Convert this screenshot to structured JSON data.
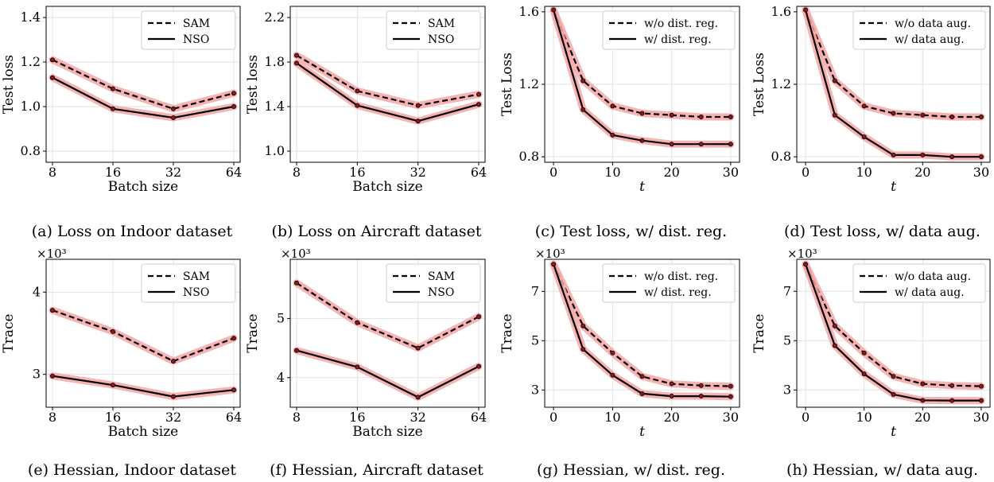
{
  "chart_data": [
    {
      "id": "a",
      "type": "line",
      "caption": "(a) Loss on Indoor dataset",
      "xlabel": "Batch size",
      "ylabel": "Test loss",
      "x_scale": "log2",
      "xticks": [
        8,
        16,
        32,
        64
      ],
      "yticks": [
        "0.8",
        "1.0",
        "1.2",
        "1.4"
      ],
      "xlim": [
        8,
        64
      ],
      "ylim": [
        0.75,
        1.45
      ],
      "exponent_label": "",
      "x": [
        8,
        16,
        32,
        64
      ],
      "series": [
        {
          "name": "SAM",
          "style": "dashed",
          "values": [
            1.21,
            1.08,
            0.99,
            1.06
          ]
        },
        {
          "name": "NSO",
          "style": "solid",
          "values": [
            1.13,
            0.99,
            0.95,
            1.0
          ]
        }
      ]
    },
    {
      "id": "b",
      "type": "line",
      "caption": "(b) Loss on Aircraft dataset",
      "xlabel": "Batch size",
      "ylabel": "Test loss",
      "x_scale": "log2",
      "xticks": [
        8,
        16,
        32,
        64
      ],
      "yticks": [
        "1.0",
        "1.4",
        "1.8",
        "2.2"
      ],
      "xlim": [
        8,
        64
      ],
      "ylim": [
        0.9,
        2.3
      ],
      "exponent_label": "",
      "x": [
        8,
        16,
        32,
        64
      ],
      "series": [
        {
          "name": "SAM",
          "style": "dashed",
          "values": [
            1.86,
            1.54,
            1.41,
            1.51
          ]
        },
        {
          "name": "NSO",
          "style": "solid",
          "values": [
            1.79,
            1.41,
            1.27,
            1.42
          ]
        }
      ]
    },
    {
      "id": "c",
      "type": "line",
      "caption": "(c) Test loss, w/ dist. reg.",
      "xlabel": "t",
      "ylabel": "Test Loss",
      "x_scale": "linear",
      "xticks": [
        0,
        10,
        20,
        30
      ],
      "yticks": [
        "0.8",
        "1.2",
        "1.6"
      ],
      "xlim": [
        -1.5,
        31.5
      ],
      "ylim": [
        0.77,
        1.63
      ],
      "exponent_label": "",
      "x": [
        0,
        5,
        10,
        15,
        20,
        25,
        30
      ],
      "series": [
        {
          "name": "w/o dist. reg.",
          "style": "dashed",
          "values": [
            1.61,
            1.22,
            1.08,
            1.04,
            1.03,
            1.02,
            1.02
          ]
        },
        {
          "name": "w/ dist. reg.",
          "style": "solid",
          "values": [
            1.61,
            1.06,
            0.92,
            0.89,
            0.87,
            0.87,
            0.87
          ]
        }
      ]
    },
    {
      "id": "d",
      "type": "line",
      "caption": "(d) Test loss, w/ data aug.",
      "xlabel": "t",
      "ylabel": "Test Loss",
      "x_scale": "linear",
      "xticks": [
        0,
        10,
        20,
        30
      ],
      "yticks": [
        "0.8",
        "1.2",
        "1.6"
      ],
      "xlim": [
        -1.5,
        31.5
      ],
      "ylim": [
        0.77,
        1.63
      ],
      "exponent_label": "",
      "x": [
        0,
        5,
        10,
        15,
        20,
        25,
        30
      ],
      "series": [
        {
          "name": "w/o data aug.",
          "style": "dashed",
          "values": [
            1.61,
            1.22,
            1.08,
            1.04,
            1.03,
            1.02,
            1.02
          ]
        },
        {
          "name": "w/ data aug.",
          "style": "solid",
          "values": [
            1.61,
            1.03,
            0.91,
            0.81,
            0.81,
            0.8,
            0.8
          ]
        }
      ]
    },
    {
      "id": "e",
      "type": "line",
      "caption": "(e) Hessian, Indoor dataset",
      "xlabel": "Batch size",
      "ylabel": "Trace",
      "x_scale": "log2",
      "xticks": [
        8,
        16,
        32,
        64
      ],
      "yticks": [
        "3",
        "4"
      ],
      "xlim": [
        8,
        64
      ],
      "ylim": [
        2.6,
        4.4
      ],
      "exponent_label": "×10³",
      "x": [
        8,
        16,
        32,
        64
      ],
      "series": [
        {
          "name": "SAM",
          "style": "dashed",
          "values": [
            3.78,
            3.52,
            3.16,
            3.44
          ]
        },
        {
          "name": "NSO",
          "style": "solid",
          "values": [
            2.98,
            2.87,
            2.73,
            2.81
          ]
        }
      ]
    },
    {
      "id": "f",
      "type": "line",
      "caption": "(f) Hessian, Aircraft dataset",
      "xlabel": "Batch size",
      "ylabel": "Trace",
      "x_scale": "log2",
      "xticks": [
        8,
        16,
        32,
        64
      ],
      "yticks": [
        "4",
        "5"
      ],
      "xlim": [
        8,
        64
      ],
      "ylim": [
        3.5,
        6.0
      ],
      "exponent_label": "×10³",
      "x": [
        8,
        16,
        32,
        64
      ],
      "series": [
        {
          "name": "SAM",
          "style": "dashed",
          "values": [
            5.6,
            4.93,
            4.5,
            5.03
          ]
        },
        {
          "name": "NSO",
          "style": "solid",
          "values": [
            4.46,
            4.18,
            3.67,
            4.19
          ]
        }
      ]
    },
    {
      "id": "g",
      "type": "line",
      "caption": "(g) Hessian, w/ dist. reg.",
      "xlabel": "t",
      "ylabel": "Trace",
      "x_scale": "linear",
      "xticks": [
        0,
        10,
        20,
        30
      ],
      "yticks": [
        "3",
        "5",
        "7"
      ],
      "xlim": [
        -1.5,
        31.5
      ],
      "ylim": [
        2.3,
        8.3
      ],
      "exponent_label": "×10³",
      "x": [
        0,
        5,
        10,
        15,
        20,
        25,
        30
      ],
      "series": [
        {
          "name": "w/o dist. reg.",
          "style": "dashed",
          "values": [
            8.1,
            5.6,
            4.5,
            3.55,
            3.25,
            3.18,
            3.15
          ]
        },
        {
          "name": "w/ dist. reg.",
          "style": "solid",
          "values": [
            8.1,
            4.65,
            3.6,
            2.85,
            2.75,
            2.75,
            2.73
          ]
        }
      ]
    },
    {
      "id": "h",
      "type": "line",
      "caption": "(h) Hessian, w/ data aug.",
      "xlabel": "t",
      "ylabel": "Trace",
      "x_scale": "linear",
      "xticks": [
        0,
        10,
        20,
        30
      ],
      "yticks": [
        "3",
        "5",
        "7"
      ],
      "xlim": [
        -1.5,
        31.5
      ],
      "ylim": [
        2.3,
        8.3
      ],
      "exponent_label": "×10³",
      "x": [
        0,
        5,
        10,
        15,
        20,
        25,
        30
      ],
      "series": [
        {
          "name": "w/o data aug.",
          "style": "dashed",
          "values": [
            8.1,
            5.6,
            4.5,
            3.55,
            3.25,
            3.18,
            3.15
          ]
        },
        {
          "name": "w/ data aug.",
          "style": "solid",
          "values": [
            8.1,
            4.8,
            3.65,
            2.82,
            2.58,
            2.57,
            2.57
          ]
        }
      ]
    }
  ],
  "colors": {
    "line": "#000000",
    "band": "#f4a6a6",
    "marker": "#8b1a1a",
    "grid": "#e2e2e2"
  }
}
